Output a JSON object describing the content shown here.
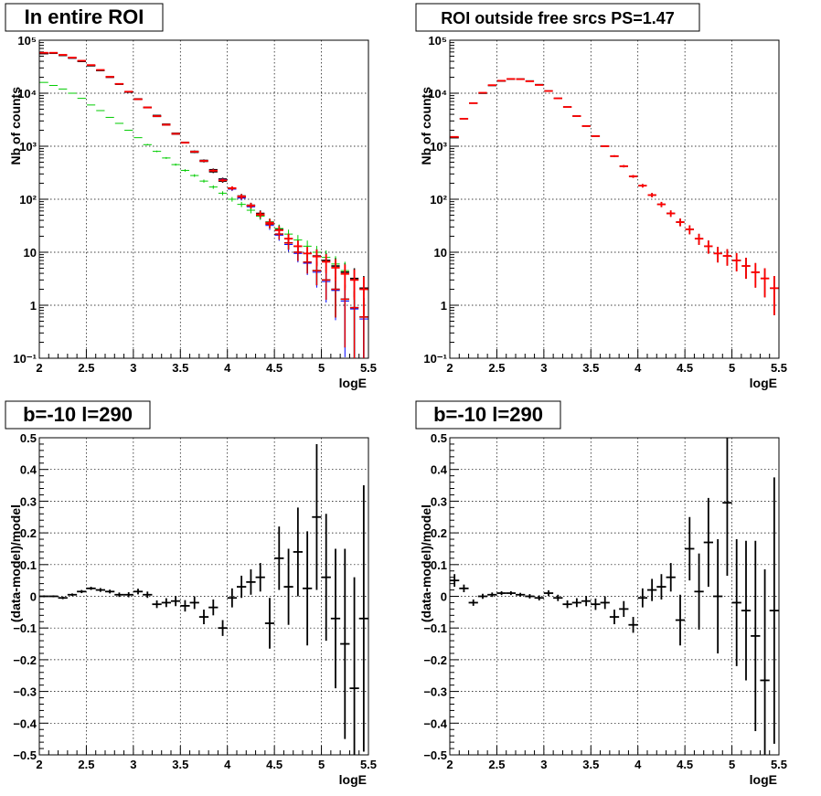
{
  "colors": {
    "data": "#000000",
    "model": "#ff0000",
    "component_blue": "#0000ff",
    "component_green": "#00cc00",
    "grid": "#000000"
  },
  "chart_data": [
    {
      "type": "scatter",
      "title": "In entire ROI",
      "xlabel": "logE",
      "ylabel": "Nb of counts",
      "xlim": [
        2,
        5.5
      ],
      "ylim": [
        0.1,
        100000
      ],
      "yscale": "log",
      "grid": true,
      "xticks": [
        "2",
        "2.5",
        "3",
        "3.5",
        "4",
        "4.5",
        "5",
        "5.5"
      ],
      "yticks": [
        "10⁻¹",
        "1",
        "10",
        "10²",
        "10³",
        "10⁴",
        "10⁵"
      ],
      "x": [
        2.05,
        2.15,
        2.25,
        2.35,
        2.45,
        2.55,
        2.65,
        2.75,
        2.85,
        2.95,
        3.05,
        3.15,
        3.25,
        3.35,
        3.45,
        3.55,
        3.65,
        3.75,
        3.85,
        3.95,
        4.05,
        4.15,
        4.25,
        4.35,
        4.45,
        4.55,
        4.65,
        4.75,
        4.85,
        4.95,
        5.05,
        5.15,
        5.25,
        5.35,
        5.45
      ],
      "series": [
        {
          "values": [
            56000,
            57000,
            52000,
            46000,
            40000,
            33000,
            27000,
            20000,
            15000,
            10500,
            7800,
            5400,
            3800,
            2600,
            1750,
            1180,
            800,
            540,
            360,
            240,
            160,
            110,
            75,
            50,
            34,
            22,
            15,
            10,
            6.5,
            4.5,
            3.0,
            2.0,
            1.3,
            0.9,
            0.6
          ]
        },
        {
          "values": [
            56000,
            57000,
            52000,
            46000,
            40000,
            33000,
            27000,
            20000,
            15000,
            10500,
            7700,
            5300,
            3700,
            2500,
            1700,
            1150,
            780,
            530,
            350,
            235,
            155,
            105,
            72,
            48,
            32,
            21,
            14,
            9.5,
            6.2,
            4.2,
            2.8,
            1.9,
            1.2,
            0.85,
            0.55
          ]
        },
        {
          "values": [
            56000,
            57000,
            53000,
            47000,
            41000,
            34000,
            27000,
            20000,
            15000,
            10700,
            7700,
            5300,
            3700,
            2500,
            1700,
            1150,
            780,
            520,
            350,
            230,
            160,
            110,
            75,
            50,
            34,
            22,
            15,
            10,
            6.5,
            4.5,
            3.0,
            2.0,
            1.3,
            0.9,
            0.6
          ]
        },
        {
          "values": [
            56200,
            56800,
            51800,
            46500,
            40200,
            33300,
            26800,
            20300,
            14800,
            10600,
            7650,
            5380,
            3660,
            2540,
            1700,
            1180,
            770,
            520,
            330,
            220,
            162,
            115,
            77,
            54,
            37,
            27,
            18,
            13,
            9.5,
            8.5,
            7.0,
            5.5,
            4.2,
            3.2,
            2.1
          ]
        },
        {
          "values": [
            16000,
            14000,
            12000,
            10000,
            8000,
            6000,
            4700,
            3500,
            2700,
            2000,
            1450,
            1070,
            800,
            600,
            450,
            350,
            280,
            220,
            170,
            130,
            100,
            80,
            62,
            48,
            37,
            28,
            22,
            17,
            13,
            10,
            8,
            6,
            4.5,
            3,
            2
          ]
        },
        {
          "values": [
            58000,
            58000,
            53000,
            47000,
            41000,
            34000,
            27500,
            20500,
            15000,
            10700,
            7700,
            5400,
            3700,
            2550,
            1720,
            1170,
            790,
            530,
            345,
            228,
            162,
            113,
            76,
            52,
            36,
            26,
            18,
            13,
            9.5,
            8.3,
            6.6,
            5.1,
            3.9,
            3.0,
            2.0
          ]
        }
      ]
    },
    {
      "type": "scatter",
      "title": "ROI outside free srcs PS=1.47",
      "xlabel": "logE",
      "ylabel": "Nb of counts",
      "xlim": [
        2,
        5.5
      ],
      "ylim": [
        0.1,
        100000
      ],
      "yscale": "log",
      "grid": true,
      "xticks": [
        "2",
        "2.5",
        "3",
        "3.5",
        "4",
        "4.5",
        "5",
        "5.5"
      ],
      "yticks": [
        "10⁻¹",
        "1",
        "10",
        "10²",
        "10³",
        "10⁴",
        "10⁵"
      ],
      "x": [
        2.05,
        2.15,
        2.25,
        2.35,
        2.45,
        2.55,
        2.65,
        2.75,
        2.85,
        2.95,
        3.05,
        3.15,
        3.25,
        3.35,
        3.45,
        3.55,
        3.65,
        3.75,
        3.85,
        3.95,
        4.05,
        4.15,
        4.25,
        4.35,
        4.45,
        4.55,
        4.65,
        4.75,
        4.85,
        4.95,
        5.05,
        5.15,
        5.25,
        5.35,
        5.45
      ],
      "series": [
        {
          "values": [
            1450,
            3300,
            6500,
            10000,
            14000,
            17000,
            18500,
            18500,
            17000,
            14500,
            11000,
            8000,
            5500,
            3700,
            2400,
            1550,
            1000,
            650,
            420,
            270,
            180,
            120,
            80,
            54,
            37,
            27,
            18,
            13,
            9.5,
            8.5,
            7.0,
            5.5,
            4.2,
            3.2,
            2.1
          ]
        },
        {
          "values": [
            1500,
            3300,
            6500,
            10200,
            14200,
            17200,
            18600,
            18400,
            16800,
            14300,
            11000,
            8000,
            5500,
            3700,
            2400,
            1550,
            1000,
            650,
            420,
            270,
            180,
            120,
            80,
            54,
            37,
            27,
            18,
            13,
            9.5,
            8.5,
            7.0,
            5.5,
            4.2,
            3.2,
            2.1
          ]
        }
      ]
    },
    {
      "type": "scatter",
      "title": "b=-10 l=290",
      "xlabel": "logE",
      "ylabel": "(data-model)/model",
      "xlim": [
        2,
        5.5
      ],
      "ylim": [
        -0.5,
        0.5
      ],
      "grid": true,
      "xticks": [
        "2",
        "2.5",
        "3",
        "3.5",
        "4",
        "4.5",
        "5",
        "5.5"
      ],
      "yticks": [
        "−0.5",
        "−0.4",
        "−0.3",
        "−0.2",
        "−0.1",
        "0",
        "0.1",
        "0.2",
        "0.3",
        "0.4",
        "0.5"
      ],
      "x": [
        2.05,
        2.15,
        2.25,
        2.35,
        2.45,
        2.55,
        2.65,
        2.75,
        2.85,
        2.95,
        3.05,
        3.15,
        3.25,
        3.35,
        3.45,
        3.55,
        3.65,
        3.75,
        3.85,
        3.95,
        4.05,
        4.15,
        4.25,
        4.35,
        4.45,
        4.55,
        4.65,
        4.75,
        4.85,
        4.95,
        5.05,
        5.15,
        5.25,
        5.35,
        5.45
      ],
      "series": [
        {
          "values": [
            0.0,
            0.0,
            -0.005,
            0.005,
            0.015,
            0.025,
            0.02,
            0.015,
            0.005,
            0.005,
            0.015,
            0.005,
            -0.025,
            -0.02,
            -0.015,
            -0.03,
            -0.02,
            -0.065,
            -0.035,
            -0.1,
            -0.005,
            0.03,
            0.045,
            0.06,
            -0.085,
            0.12,
            0.03,
            0.14,
            0.025,
            0.25,
            0.06,
            -0.07,
            -0.15,
            -0.29,
            -0.07
          ],
          "errors": [
            0.003,
            0.003,
            0.004,
            0.004,
            0.005,
            0.005,
            0.006,
            0.006,
            0.007,
            0.008,
            0.009,
            0.01,
            0.012,
            0.014,
            0.016,
            0.018,
            0.02,
            0.023,
            0.025,
            0.025,
            0.03,
            0.035,
            0.04,
            0.045,
            0.08,
            0.1,
            0.12,
            0.14,
            0.18,
            0.23,
            0.2,
            0.22,
            0.3,
            0.35,
            0.42
          ]
        }
      ]
    },
    {
      "type": "scatter",
      "title": "b=-10 l=290",
      "xlabel": "logE",
      "ylabel": "(data-model)/model",
      "xlim": [
        2,
        5.5
      ],
      "ylim": [
        -0.5,
        0.5
      ],
      "grid": true,
      "xticks": [
        "2",
        "2.5",
        "3",
        "3.5",
        "4",
        "4.5",
        "5",
        "5.5"
      ],
      "yticks": [
        "−0.5",
        "−0.4",
        "−0.3",
        "−0.2",
        "−0.1",
        "0",
        "0.1",
        "0.2",
        "0.3",
        "0.4",
        "0.5"
      ],
      "x": [
        2.05,
        2.15,
        2.25,
        2.35,
        2.45,
        2.55,
        2.65,
        2.75,
        2.85,
        2.95,
        3.05,
        3.15,
        3.25,
        3.35,
        3.45,
        3.55,
        3.65,
        3.75,
        3.85,
        3.95,
        4.05,
        4.15,
        4.25,
        4.35,
        4.45,
        4.55,
        4.65,
        4.75,
        4.85,
        4.95,
        5.05,
        5.15,
        5.25,
        5.35,
        5.45
      ],
      "series": [
        {
          "values": [
            0.05,
            0.025,
            -0.02,
            0.0,
            0.005,
            0.01,
            0.01,
            0.005,
            0.0,
            -0.005,
            0.01,
            -0.005,
            -0.025,
            -0.02,
            -0.015,
            -0.025,
            -0.02,
            -0.065,
            -0.04,
            -0.09,
            -0.005,
            0.02,
            0.03,
            0.06,
            -0.075,
            0.15,
            0.015,
            0.17,
            0.0,
            0.295,
            -0.02,
            -0.045,
            -0.125,
            -0.265,
            -0.045
          ],
          "errors": [
            0.02,
            0.012,
            0.01,
            0.008,
            0.007,
            0.006,
            0.006,
            0.006,
            0.007,
            0.008,
            0.009,
            0.01,
            0.012,
            0.014,
            0.016,
            0.018,
            0.02,
            0.023,
            0.025,
            0.025,
            0.03,
            0.035,
            0.04,
            0.045,
            0.08,
            0.1,
            0.12,
            0.14,
            0.18,
            0.23,
            0.2,
            0.22,
            0.3,
            0.35,
            0.42
          ]
        }
      ]
    }
  ]
}
